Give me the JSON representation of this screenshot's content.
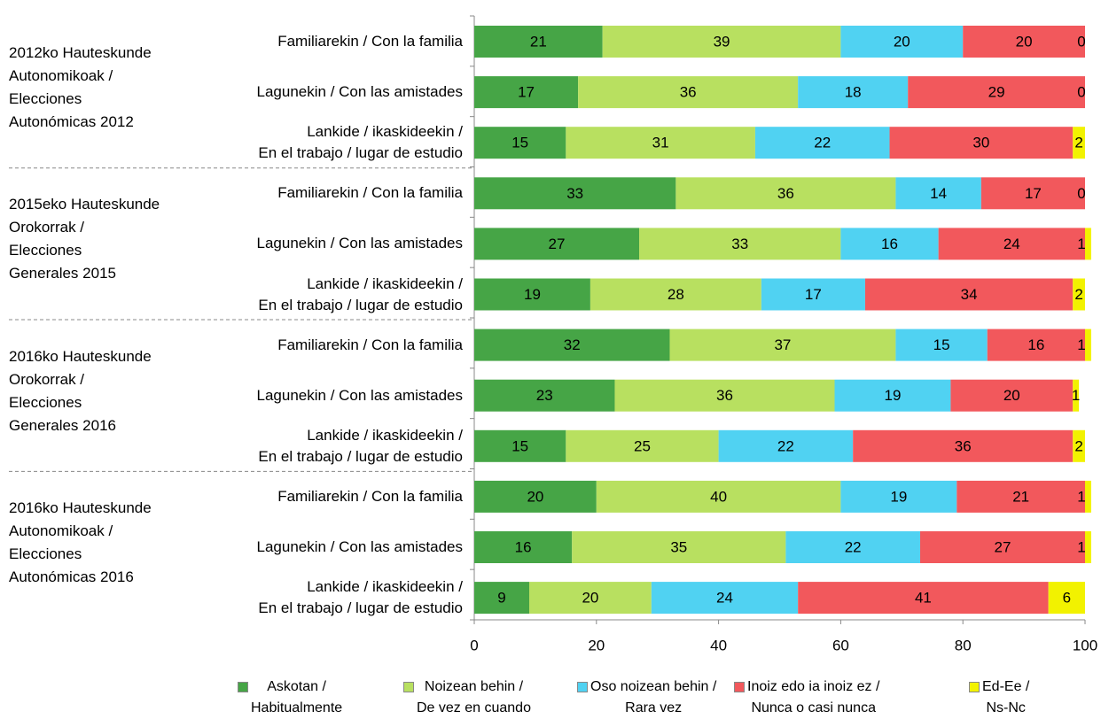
{
  "chart_data": {
    "type": "stacked-bar-horizontal",
    "groups": [
      "2012ko Hauteskunde\nAutonomikoak /\nElecciones\nAutonómicas 2012",
      "2015eko Hauteskunde\nOrokorrak /\nElecciones\nGenerales 2015",
      "2016ko Hauteskunde\nOrokorrak /\nElecciones\nGenerales 2016",
      "2016ko Hauteskunde\nAutonomikoak /\nElecciones\nAutonómicas 2016"
    ],
    "categories": [
      "Familiarekin / Con la familia",
      "Lagunekin / Con las amistades",
      "Lankide / ikaskideekin /\nEn el trabajo / lugar de estudio",
      "Familiarekin / Con la familia",
      "Lagunekin / Con las amistades",
      "Lankide / ikaskideekin /\nEn el trabajo / lugar de estudio",
      "Familiarekin / Con la familia",
      "Lagunekin / Con las amistades",
      "Lankide / ikaskideekin /\nEn el trabajo / lugar de estudio",
      "Familiarekin / Con la familia",
      "Lagunekin / Con las amistades",
      "Lankide / ikaskideekin /\nEn el trabajo / lugar de estudio"
    ],
    "series": [
      {
        "name": "Askotan /\nHabitualmente",
        "color": "#46a546",
        "values": [
          21,
          17,
          15,
          33,
          27,
          19,
          32,
          23,
          15,
          20,
          16,
          9
        ]
      },
      {
        "name": "Noizean behin /\nDe vez en cuando",
        "color": "#b8e060",
        "values": [
          39,
          36,
          31,
          36,
          33,
          28,
          37,
          36,
          25,
          40,
          35,
          20
        ]
      },
      {
        "name": "Oso noizean behin /\nRara vez",
        "color": "#50d2f2",
        "values": [
          20,
          18,
          22,
          14,
          16,
          17,
          15,
          19,
          22,
          19,
          22,
          24
        ]
      },
      {
        "name": "Inoiz edo ia inoiz ez /\nNunca o casi nunca",
        "color": "#f2585c",
        "values": [
          20,
          29,
          30,
          17,
          24,
          34,
          16,
          20,
          36,
          21,
          27,
          41
        ]
      },
      {
        "name": "Ed-Ee /\nNs-Nc",
        "color": "#f2f200",
        "values": [
          0,
          0,
          2,
          0,
          1,
          2,
          1,
          1,
          2,
          1,
          1,
          6
        ]
      }
    ],
    "xlim": [
      0,
      100
    ],
    "xticks": [
      0,
      20,
      40,
      60,
      80,
      100
    ]
  }
}
